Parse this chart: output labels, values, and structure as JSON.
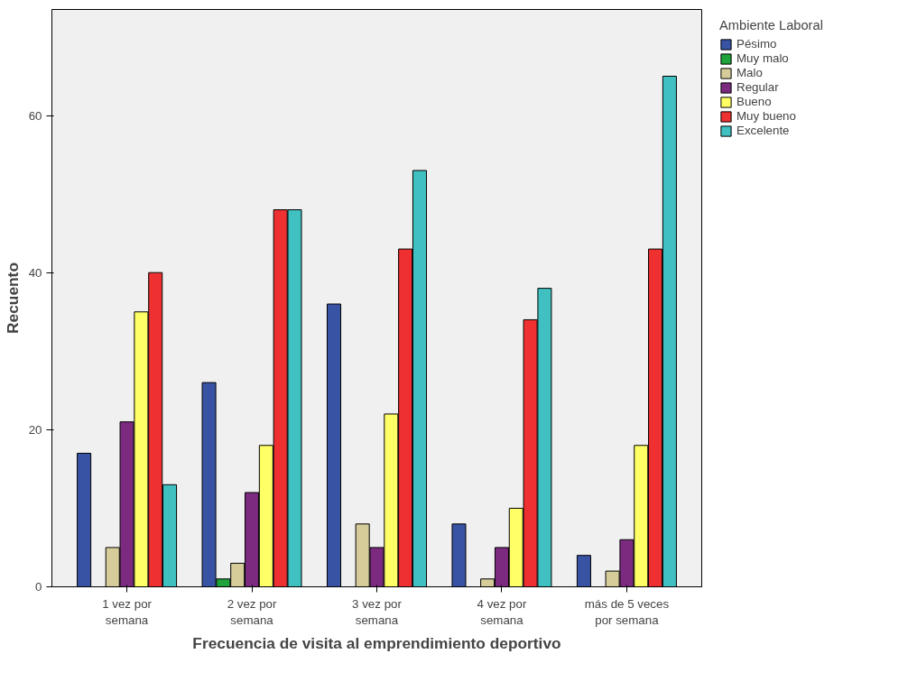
{
  "chart_data": {
    "type": "bar",
    "xlabel": "Frecuencia de visita al emprendimiento deportivo",
    "ylabel": "Recuento",
    "legend_title": "Ambiente Laboral",
    "categories": [
      "1 vez por\nsemana",
      "2 vez por\nsemana",
      "3 vez por\nsemana",
      "4 vez por\nsemana",
      "más de 5 veces\npor semana"
    ],
    "series": [
      {
        "name": "Pésimo",
        "color": "#3953a4",
        "values": [
          17,
          26,
          36,
          8,
          4
        ]
      },
      {
        "name": "Muy malo",
        "color": "#1fa33a",
        "values": [
          0,
          1,
          0,
          0,
          0
        ]
      },
      {
        "name": "Malo",
        "color": "#d6cc9a",
        "values": [
          5,
          3,
          8,
          1,
          2
        ]
      },
      {
        "name": "Regular",
        "color": "#7b2a7f",
        "values": [
          21,
          12,
          5,
          5,
          6
        ]
      },
      {
        "name": "Bueno",
        "color": "#ffff66",
        "values": [
          35,
          18,
          22,
          10,
          18
        ]
      },
      {
        "name": "Muy bueno",
        "color": "#ee3030",
        "values": [
          40,
          48,
          43,
          34,
          43
        ]
      },
      {
        "name": "Excelente",
        "color": "#40c0c0",
        "values": [
          13,
          48,
          53,
          38,
          65
        ]
      }
    ],
    "ylim": [
      0,
      73.5
    ],
    "yticks": [
      0,
      20,
      40,
      60
    ],
    "grid": false,
    "legend": "right"
  }
}
